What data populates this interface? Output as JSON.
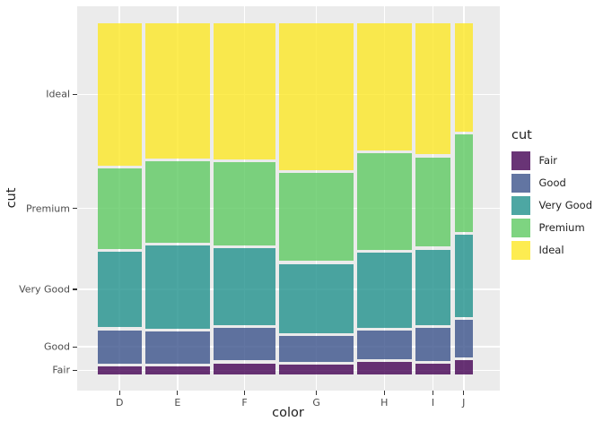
{
  "figure": {
    "x_axis_title": "color",
    "y_axis_title": "cut"
  },
  "legend": {
    "title": "cut",
    "entries": [
      {
        "label": "Fair",
        "color": "#440154"
      },
      {
        "label": "Good",
        "color": "#3b528b"
      },
      {
        "label": "Very Good",
        "color": "#21918c"
      },
      {
        "label": "Premium",
        "color": "#5ec962"
      },
      {
        "label": "Ideal",
        "color": "#fde725"
      }
    ]
  },
  "chart_data": {
    "type": "mosaic",
    "title": "",
    "xlabel": "color",
    "ylabel": "cut",
    "legend_position": "right",
    "grid": true,
    "x_categories": [
      "D",
      "E",
      "F",
      "G",
      "H",
      "I",
      "J"
    ],
    "y_categories": [
      "Fair",
      "Good",
      "Very Good",
      "Premium",
      "Ideal"
    ],
    "column_width_share": [
      0.1256,
      0.1816,
      0.1769,
      0.2093,
      0.154,
      0.1005,
      0.0521
    ],
    "cut_fraction_within_color": {
      "D": [
        0.0241,
        0.0977,
        0.2233,
        0.2366,
        0.4183
      ],
      "E": [
        0.0229,
        0.0952,
        0.245,
        0.2385,
        0.3984
      ],
      "F": [
        0.0327,
        0.0953,
        0.2268,
        0.2443,
        0.401
      ],
      "G": [
        0.0278,
        0.0771,
        0.2036,
        0.2589,
        0.4325
      ],
      "H": [
        0.0365,
        0.0845,
        0.2197,
        0.2842,
        0.3751
      ],
      "I": [
        0.0323,
        0.0963,
        0.2221,
        0.2634,
        0.386
      ],
      "J": [
        0.0424,
        0.1093,
        0.2415,
        0.2877,
        0.3191
      ]
    },
    "series_colors": {
      "Fair": "#440154",
      "Good": "#3b528b",
      "Very Good": "#21918c",
      "Premium": "#5ec962",
      "Ideal": "#fde725"
    },
    "fill_alpha": 0.8
  },
  "style": {
    "panel_bg": "#ebebeb",
    "grid_color": "#ffffff",
    "tick_label_color": "#4d4d4d",
    "axis_title_color": "#1f1f1f",
    "tick_mark_color": "#333333",
    "background": "#ffffff"
  }
}
